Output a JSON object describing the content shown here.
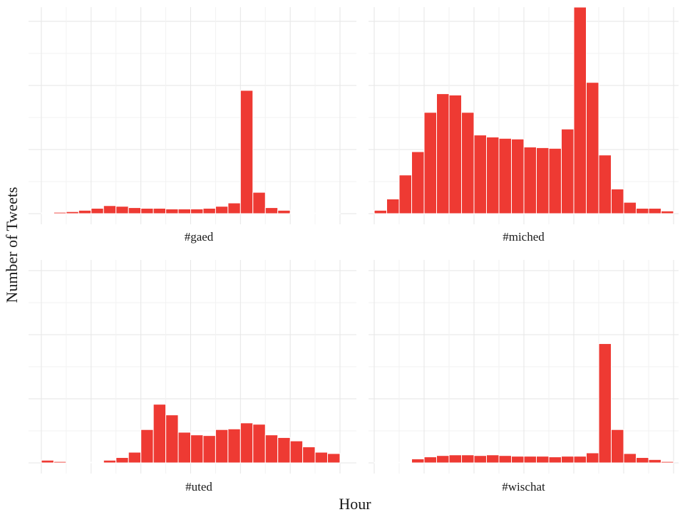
{
  "chart_data": {
    "type": "bar",
    "xlabel": "Hour",
    "ylabel": "Number of Tweets",
    "x": [
      0,
      1,
      2,
      3,
      4,
      5,
      6,
      7,
      8,
      9,
      10,
      11,
      12,
      13,
      14,
      15,
      16,
      17,
      18,
      19,
      20,
      21,
      22,
      23
    ],
    "ylim": [
      0,
      310
    ],
    "grid": true,
    "shared_axes": true,
    "colors": {
      "bar": "#ee3a33",
      "bar_edge": "#ffffff"
    },
    "panels": [
      {
        "name": "#gaed",
        "values": [
          1,
          2,
          3,
          5,
          8,
          12,
          11,
          9,
          8,
          8,
          7,
          7,
          7,
          8,
          11,
          16,
          185,
          32,
          9,
          5,
          1,
          1,
          0,
          0
        ]
      },
      {
        "name": "#miched",
        "values": [
          5,
          22,
          58,
          93,
          152,
          180,
          178,
          152,
          118,
          115,
          113,
          112,
          100,
          99,
          98,
          127,
          310,
          197,
          88,
          37,
          17,
          8,
          8,
          4
        ]
      },
      {
        "name": "#uted",
        "values": [
          4,
          2,
          1,
          1,
          1,
          4,
          8,
          16,
          50,
          88,
          72,
          46,
          42,
          41,
          50,
          51,
          60,
          58,
          42,
          38,
          33,
          24,
          16,
          14
        ]
      },
      {
        "name": "#wischat",
        "values": [
          0,
          0,
          1,
          6,
          9,
          11,
          12,
          12,
          11,
          12,
          11,
          10,
          10,
          10,
          9,
          10,
          10,
          15,
          179,
          50,
          14,
          8,
          5,
          2
        ]
      }
    ]
  }
}
